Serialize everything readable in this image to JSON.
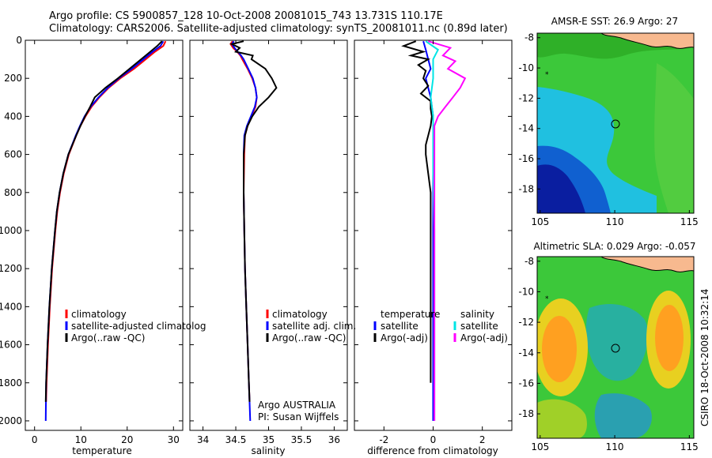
{
  "header": {
    "line1": "Argo profile: CS 5900857_128 10-Oct-2008 20081015_743 13.731S 110.17E",
    "line2": "Climatology: CARS2006. Satellite-adjusted climatology: synTS_20081011.nc (0.89d later)"
  },
  "colors": {
    "climatology": "#ff0000",
    "satellite": "#0000ff",
    "argo": "#000000",
    "sal_satellite": "#00e5e5",
    "sal_argo": "#ff00ff"
  },
  "chart_data": [
    {
      "type": "line",
      "id": "temperature",
      "xlabel": "temperature",
      "xlim": [
        -2,
        32
      ],
      "ylim": [
        0,
        2050
      ],
      "xticks": [
        0,
        10,
        20,
        30
      ],
      "yticks": [
        0,
        200,
        400,
        600,
        800,
        1000,
        1200,
        1400,
        1600,
        1800,
        2000
      ],
      "legend": [
        "climatology",
        "satellite-adjusted climatolog",
        "Argo(..raw -QC)"
      ],
      "series": [
        {
          "name": "climatology",
          "color": "#ff0000",
          "depth": [
            5,
            30,
            60,
            100,
            150,
            200,
            250,
            300,
            350,
            400,
            450,
            500,
            600,
            700,
            800,
            900,
            1000,
            1200,
            1400,
            1600,
            1800,
            1900
          ],
          "values": [
            28.3,
            27.8,
            26,
            24,
            21.5,
            18.5,
            16,
            14,
            12.3,
            11,
            9.9,
            9,
            7.4,
            6.3,
            5.5,
            4.9,
            4.5,
            3.8,
            3.3,
            2.9,
            2.6,
            2.5
          ]
        },
        {
          "name": "satellite",
          "color": "#0000ff",
          "depth": [
            5,
            30,
            60,
            100,
            150,
            200,
            250,
            300,
            350,
            400,
            450,
            500,
            600,
            700,
            800,
            900,
            1000,
            1200,
            1400,
            1600,
            1800,
            2000
          ],
          "values": [
            27.8,
            27.2,
            25.5,
            23.5,
            21,
            18.2,
            15.8,
            13.8,
            12.1,
            10.8,
            9.8,
            8.9,
            7.3,
            6.2,
            5.4,
            4.8,
            4.4,
            3.7,
            3.2,
            2.8,
            2.5,
            2.4
          ]
        },
        {
          "name": "Argo",
          "color": "#000000",
          "depth": [
            5,
            30,
            60,
            100,
            150,
            200,
            250,
            300,
            350,
            400,
            450,
            500,
            600,
            700,
            800,
            900,
            1000,
            1200,
            1400,
            1600,
            1800,
            1900
          ],
          "values": [
            27.5,
            26.5,
            25,
            23,
            20.5,
            18,
            15.3,
            13,
            12,
            10.9,
            9.9,
            9,
            7.3,
            6.2,
            5.4,
            4.8,
            4.4,
            3.7,
            3.2,
            2.8,
            2.5,
            2.4
          ]
        }
      ]
    },
    {
      "type": "line",
      "id": "salinity",
      "xlabel": "salinity",
      "xlim": [
        33.8,
        36.2
      ],
      "ylim": [
        0,
        2050
      ],
      "xticks": [
        34,
        34.5,
        35,
        35.5,
        36
      ],
      "legend": [
        "climatology",
        "satellite adj. clim.",
        "Argo(..raw -QC)"
      ],
      "series": [
        {
          "name": "climatology",
          "color": "#ff0000",
          "depth": [
            5,
            20,
            40,
            60,
            80,
            100,
            150,
            200,
            250,
            300,
            350,
            400,
            450,
            500,
            600,
            800,
            1000,
            1200,
            1400,
            1600,
            1800,
            1900
          ],
          "values": [
            34.45,
            34.42,
            34.46,
            34.52,
            34.57,
            34.6,
            34.68,
            34.75,
            34.8,
            34.82,
            34.8,
            34.74,
            34.68,
            34.64,
            34.63,
            34.62,
            34.63,
            34.64,
            34.66,
            34.68,
            34.7,
            34.71
          ]
        },
        {
          "name": "satellite",
          "color": "#0000ff",
          "depth": [
            5,
            20,
            40,
            60,
            80,
            100,
            150,
            200,
            250,
            300,
            350,
            400,
            450,
            500,
            600,
            800,
            1000,
            1200,
            1400,
            1600,
            1800,
            2000
          ],
          "values": [
            34.47,
            34.44,
            34.48,
            34.53,
            34.58,
            34.62,
            34.69,
            34.76,
            34.8,
            34.82,
            34.79,
            34.73,
            34.67,
            34.63,
            34.62,
            34.62,
            34.63,
            34.64,
            34.66,
            34.68,
            34.7,
            34.72
          ]
        },
        {
          "name": "Argo",
          "color": "#000000",
          "depth": [
            5,
            20,
            40,
            60,
            80,
            100,
            150,
            200,
            250,
            300,
            350,
            400,
            450,
            500,
            600,
            800,
            1000,
            1200,
            1400,
            1600,
            1800,
            1900
          ],
          "values": [
            34.62,
            34.44,
            34.56,
            34.5,
            34.76,
            34.74,
            34.95,
            35.05,
            35.12,
            35.0,
            34.85,
            34.75,
            34.68,
            34.64,
            34.62,
            34.62,
            34.63,
            34.64,
            34.66,
            34.68,
            34.7,
            34.71
          ]
        }
      ]
    },
    {
      "type": "line",
      "id": "difference",
      "xlabel": "difference from climatology",
      "xlim": [
        -3.2,
        3.2
      ],
      "ylim": [
        0,
        2050
      ],
      "xticks": [
        -2,
        0,
        2
      ],
      "legend_left_header": "temperature",
      "legend_left": [
        "satellite",
        "Argo(-adj)"
      ],
      "legend_right_header": "salinity",
      "legend_right": [
        "satellite",
        "Argo(-adj)"
      ],
      "series": [
        {
          "name": "temperature satellite",
          "color": "#0000ff",
          "depth": [
            5,
            50,
            100,
            150,
            200,
            300,
            400,
            500,
            700,
            1000,
            1400,
            1800,
            2000
          ],
          "values": [
            -0.4,
            -0.3,
            -0.2,
            -0.1,
            -0.3,
            -0.1,
            0.0,
            0.0,
            0.0,
            0.0,
            0.0,
            0.0,
            0.0
          ]
        },
        {
          "name": "temperature Argo(-adj)",
          "color": "#000000",
          "depth": [
            5,
            30,
            60,
            80,
            100,
            130,
            160,
            200,
            240,
            280,
            320,
            360,
            400,
            450,
            500,
            550,
            600,
            700,
            800,
            1000,
            1200,
            1400,
            1600,
            1800
          ],
          "values": [
            -0.7,
            -1.2,
            -0.4,
            -0.9,
            -0.2,
            -0.6,
            -0.3,
            -0.4,
            -0.2,
            -0.5,
            -0.1,
            -0.1,
            -0.05,
            -0.1,
            -0.2,
            -0.3,
            -0.3,
            -0.2,
            -0.1,
            -0.1,
            -0.1,
            -0.1,
            -0.1,
            -0.1
          ]
        },
        {
          "name": "salinity satellite",
          "color": "#00e5e5",
          "depth": [
            5,
            50,
            100,
            200,
            300,
            400,
            500,
            700,
            1000,
            1400,
            1800,
            2000
          ],
          "values": [
            -0.3,
            0.2,
            0.0,
            0.0,
            -0.1,
            0.0,
            0.0,
            0.0,
            0.05,
            0.05,
            0.05,
            0.05
          ]
        },
        {
          "name": "salinity Argo(-adj)",
          "color": "#ff00ff",
          "depth": [
            5,
            40,
            80,
            110,
            150,
            200,
            250,
            300,
            350,
            400,
            450,
            500,
            700,
            1000,
            1400,
            1800,
            2000
          ],
          "values": [
            -0.2,
            0.7,
            0.4,
            0.9,
            0.6,
            1.3,
            1.1,
            0.8,
            0.5,
            0.2,
            0.05,
            0.05,
            0.05,
            0.05,
            0.05,
            0.05,
            0.05
          ]
        }
      ]
    },
    {
      "type": "heatmap",
      "id": "sst-map",
      "title": "AMSR-E SST: 26.9 Argo: 27",
      "xticks": [
        105,
        110,
        115
      ],
      "yticks": [
        -8,
        -10,
        -12,
        -14,
        -16,
        -18
      ],
      "xlim": [
        104.8,
        115.3
      ],
      "ylim": [
        -19.6,
        -7.7
      ],
      "argo_position": [
        110.17,
        -13.73
      ]
    },
    {
      "type": "heatmap",
      "id": "sla-map",
      "title": "Altimetric SLA: 0.029 Argo: -0.057",
      "xticks": [
        105,
        110,
        115
      ],
      "yticks": [
        -8,
        -10,
        -12,
        -14,
        -16,
        -18
      ],
      "xlim": [
        104.8,
        115.3
      ],
      "ylim": [
        -19.6,
        -7.7
      ],
      "argo_position": [
        110.17,
        -13.73
      ]
    }
  ],
  "footer": {
    "argo_country": "Argo AUSTRALIA",
    "pi": "PI: Susan Wijffels",
    "stamp": "CSIRO 18-Oct-2008 10:32:14"
  }
}
